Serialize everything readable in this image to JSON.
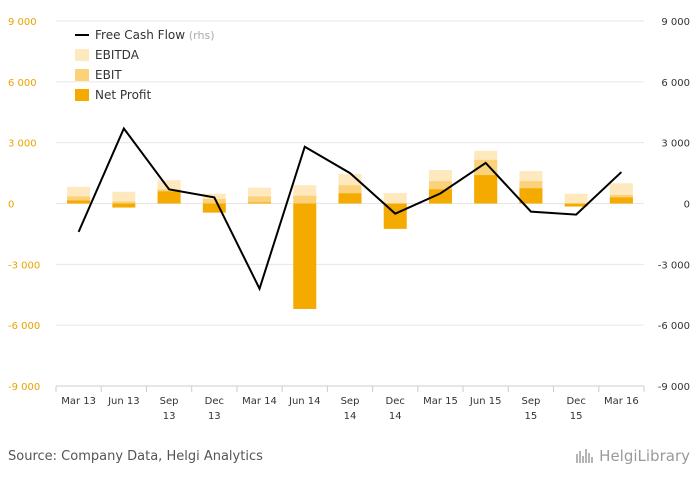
{
  "chart_data": {
    "type": "bar",
    "categories": [
      [
        "Mar 13"
      ],
      [
        "Jun 13"
      ],
      [
        "Sep",
        "13"
      ],
      [
        "Dec",
        "13"
      ],
      [
        "Mar 14"
      ],
      [
        "Jun 14"
      ],
      [
        "Sep",
        "14"
      ],
      [
        "Dec",
        "14"
      ],
      [
        "Mar 15"
      ],
      [
        "Jun 15"
      ],
      [
        "Sep",
        "15"
      ],
      [
        "Dec",
        "15"
      ],
      [
        "Mar 16"
      ]
    ],
    "series": [
      {
        "name": "EBITDA",
        "kind": "bar",
        "color": "#fde9bd",
        "values": [
          820,
          580,
          1150,
          480,
          780,
          900,
          1450,
          520,
          1650,
          2600,
          1600,
          480,
          1000
        ]
      },
      {
        "name": "EBIT",
        "kind": "bar",
        "color": "#fbd27a",
        "values": [
          350,
          100,
          700,
          220,
          350,
          380,
          900,
          -400,
          1100,
          2150,
          1100,
          -50,
          420
        ]
      },
      {
        "name": "Net Profit",
        "kind": "bar",
        "color": "#f5aa00",
        "values": [
          150,
          -200,
          600,
          -450,
          50,
          -5200,
          500,
          -1250,
          700,
          1400,
          750,
          -150,
          300
        ]
      },
      {
        "name": "Free Cash Flow",
        "legend_note": "(rhs)",
        "kind": "line",
        "color": "#000000",
        "values": [
          -1400,
          3700,
          700,
          300,
          -4200,
          2800,
          1500,
          -500,
          500,
          2000,
          -400,
          -550,
          1550
        ]
      }
    ],
    "y_left": {
      "ticks": [
        9000,
        6000,
        3000,
        0,
        -3000,
        -6000,
        -9000
      ],
      "tick_labels": [
        "9 000",
        "6 000",
        "3 000",
        "0",
        "-3 000",
        "-6 000",
        "-9 000"
      ],
      "ylim": [
        -9000,
        9000
      ]
    },
    "y_right": {
      "ticks": [
        9000,
        6000,
        3000,
        0,
        -3000,
        -6000,
        -9000
      ],
      "tick_labels": [
        "9 000",
        "6 000",
        "3 000",
        "0",
        "-3 000",
        "-6 000",
        "-9 000"
      ],
      "ylim": [
        -9000,
        9000
      ]
    },
    "grid": true,
    "legend_position": "top-left",
    "title": "",
    "xlabel": "",
    "ylabel": ""
  },
  "footer": {
    "source": "Source: Company Data, Helgi Analytics",
    "logo_text": "HelgiLibrary"
  }
}
